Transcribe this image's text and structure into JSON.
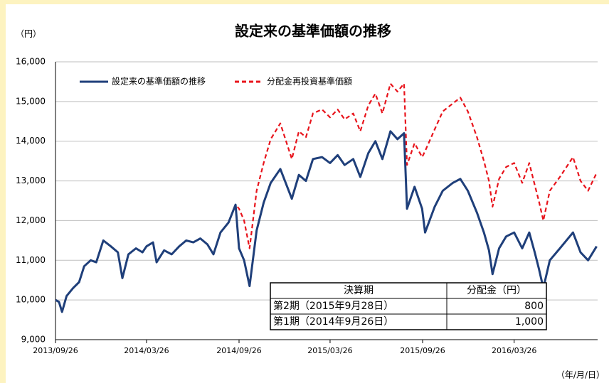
{
  "chart_data": {
    "type": "line",
    "title": "設定来の基準価額の推移",
    "y_unit": "（円）",
    "x_unit": "（年/月/日）",
    "x": [
      "2013/09/26",
      "2013/10/03",
      "2013/10/09",
      "2013/10/18",
      "2013/10/31",
      "2013/11/12",
      "2013/11/22",
      "2013/12/05",
      "2013/12/16",
      "2013/12/30",
      "2014/01/14",
      "2014/01/28",
      "2014/02/06",
      "2014/02/18",
      "2014/03/05",
      "2014/03/18",
      "2014/03/26",
      "2014/04/08",
      "2014/04/15",
      "2014/04/30",
      "2014/05/15",
      "2014/05/30",
      "2014/06/13",
      "2014/06/27",
      "2014/07/11",
      "2014/07/25",
      "2014/08/06",
      "2014/08/20",
      "2014/09/05",
      "2014/09/19",
      "2014/09/26",
      "2014/10/06",
      "2014/10/17",
      "2014/10/31",
      "2014/11/14",
      "2014/11/28",
      "2014/12/17",
      "2015/01/09",
      "2015/01/23",
      "2015/02/06",
      "2015/02/20",
      "2015/03/10",
      "2015/03/26",
      "2015/04/10",
      "2015/04/24",
      "2015/05/11",
      "2015/05/25",
      "2015/06/10",
      "2015/06/24",
      "2015/07/08",
      "2015/07/24",
      "2015/08/07",
      "2015/08/20",
      "2015/08/26",
      "2015/09/10",
      "2015/09/25",
      "2015/10/01",
      "2015/10/20",
      "2015/11/05",
      "2015/11/25",
      "2015/12/10",
      "2015/12/25",
      "2016/01/12",
      "2016/01/26",
      "2016/02/05",
      "2016/02/12",
      "2016/02/25",
      "2016/03/10",
      "2016/03/26",
      "2016/04/11",
      "2016/04/25",
      "2016/05/06",
      "2016/05/14",
      "2016/05/23",
      "2016/06/05",
      "2016/06/25",
      "2016/07/21",
      "2016/08/05",
      "2016/08/20",
      "2016/09/06"
    ],
    "series": [
      {
        "name": "設定来の基準価額の推移",
        "color": "#1f3f7a",
        "line_style": "solid",
        "values": [
          10000,
          9950,
          9700,
          10100,
          10300,
          10450,
          10850,
          11000,
          10950,
          11500,
          11350,
          11200,
          10550,
          11150,
          11300,
          11200,
          11350,
          11450,
          10950,
          11250,
          11150,
          11350,
          11500,
          11450,
          11550,
          11400,
          11150,
          11700,
          11950,
          12400,
          11300,
          11000,
          10350,
          11750,
          12450,
          12950,
          13300,
          12550,
          13150,
          13000,
          13550,
          13600,
          13450,
          13650,
          13400,
          13550,
          13100,
          13700,
          14000,
          13550,
          14250,
          14050,
          14200,
          12300,
          12850,
          12300,
          11700,
          12350,
          12750,
          12950,
          13050,
          12750,
          12200,
          11700,
          11250,
          10650,
          11300,
          11600,
          11700,
          11300,
          11700,
          11200,
          10800,
          10300,
          11000,
          11300,
          11700,
          11200,
          11000,
          11350
        ]
      },
      {
        "name": "分配金再投資基準価額",
        "color": "#e8141c",
        "line_style": "dashed",
        "values": [
          10000,
          9950,
          9700,
          10100,
          10300,
          10450,
          10850,
          11000,
          10950,
          11500,
          11350,
          11200,
          10550,
          11150,
          11300,
          11200,
          11350,
          11450,
          10950,
          11250,
          11150,
          11350,
          11500,
          11450,
          11550,
          11400,
          11150,
          11700,
          11950,
          12400,
          12300,
          12000,
          11300,
          12750,
          13450,
          14050,
          14450,
          13550,
          14250,
          14100,
          14700,
          14800,
          14600,
          14800,
          14550,
          14700,
          14250,
          14900,
          15200,
          14700,
          15450,
          15250,
          15450,
          13400,
          13950,
          13600,
          13750,
          14300,
          14750,
          14950,
          15100,
          14750,
          14100,
          13500,
          13000,
          12350,
          13050,
          13350,
          13450,
          12950,
          13450,
          12900,
          12500,
          12000,
          12750,
          13100,
          13600,
          13000,
          12750,
          13200
        ]
      }
    ],
    "xlim": [
      "2013/09/26",
      "2016/09/08"
    ],
    "xticks": [
      "2013/09/26",
      "2014/03/26",
      "2014/09/26",
      "2015/03/26",
      "2015/09/26",
      "2016/03/26"
    ],
    "ylim": [
      9000,
      16000
    ],
    "yticks": [
      {
        "value": 9000,
        "label": "9,000"
      },
      {
        "value": 10000,
        "label": "10,000"
      },
      {
        "value": 11000,
        "label": "11,000"
      },
      {
        "value": 12000,
        "label": "12,000"
      },
      {
        "value": 13000,
        "label": "13,000"
      },
      {
        "value": 14000,
        "label": "14,000"
      },
      {
        "value": 15000,
        "label": "15,000"
      },
      {
        "value": 16000,
        "label": "16,000"
      }
    ],
    "grid": true,
    "legend": "top-left"
  },
  "table": {
    "header": [
      "決算期",
      "分配金（円）"
    ],
    "rows": [
      [
        "第2期（2015年9月28日）",
        "800"
      ],
      [
        "第1期（2014年9月26日）",
        "1,000"
      ]
    ]
  }
}
